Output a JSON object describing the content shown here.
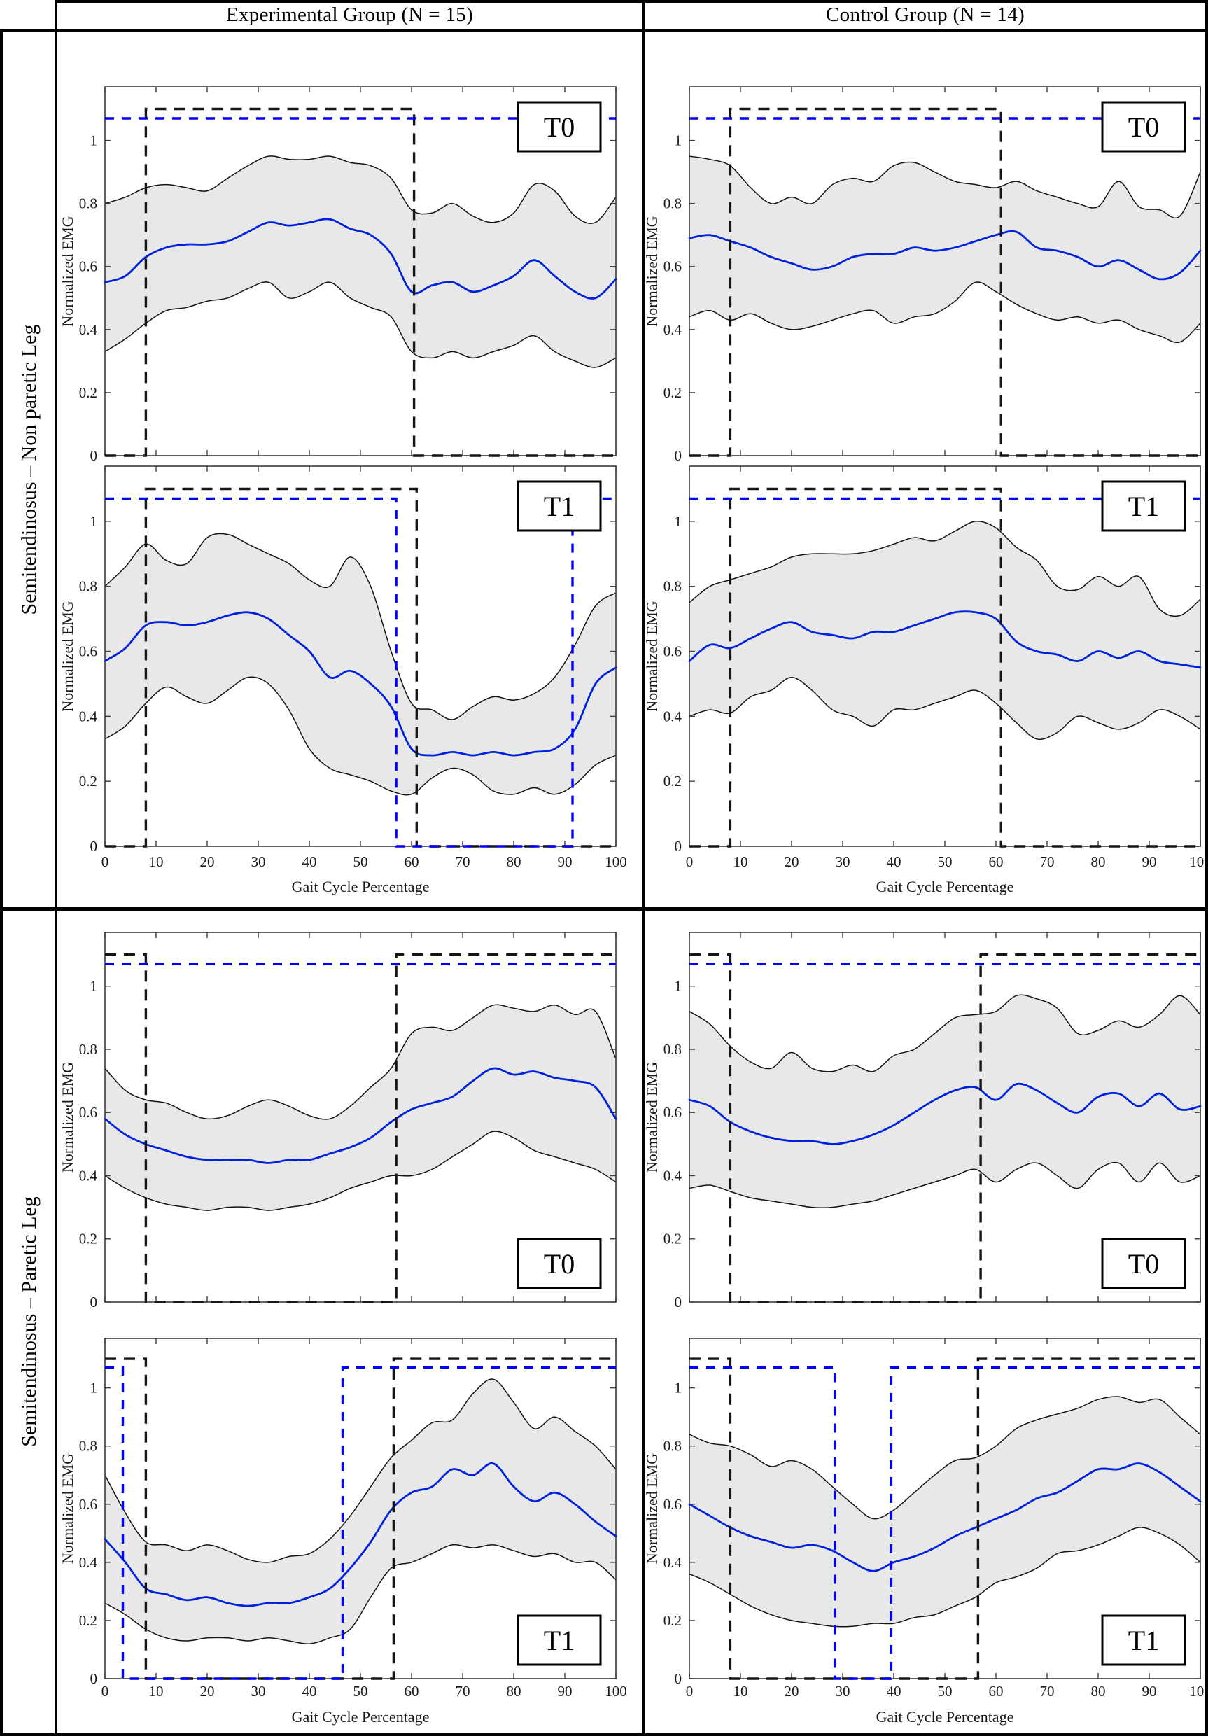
{
  "header": {
    "experimental": "Experimental Group (N = 15)",
    "control": "Control Group (N = 14)"
  },
  "rows": [
    {
      "label": "Semitendinosus – Non paretic Leg"
    },
    {
      "label": "Semitendinosus – Paretic Leg"
    }
  ],
  "axis": {
    "ylabel": "Normalized EMG",
    "xlabel": "Gait Cycle Percentage",
    "xlim": [
      0,
      100
    ],
    "ylim": [
      0,
      1.17
    ],
    "xticks": [
      0,
      10,
      20,
      30,
      40,
      50,
      60,
      70,
      80,
      90,
      100
    ],
    "yticks": [
      0,
      0.2,
      0.4,
      0.6,
      0.8,
      1
    ],
    "ytick_labels": [
      "0",
      "0.2",
      "0.4",
      "0.6",
      "0.8",
      "1"
    ],
    "grid": false
  },
  "colors": {
    "mean_line": "#0022dd",
    "blue_dashed": "#0000ff",
    "black_dashed": "#151515",
    "band_fill": "#e8e8e8",
    "band_edge": "#131313",
    "axis_line": "#3c3c3c"
  },
  "levels": {
    "black_on": 1.1,
    "blue_on": 1.07,
    "off": 0
  },
  "legend": {
    "shaded_band": "mean ± SD envelope",
    "blue_solid": "mean normalized EMG",
    "dashed_rectangles": "on/off activation intervals"
  },
  "chart_data": [
    {
      "id": "exp-np-t0",
      "type": "line",
      "group": "Experimental Group (N = 15)",
      "leg": "Non paretic Leg",
      "time_label": "T0",
      "label_position": "top-right",
      "show_x_labels": false,
      "x": [
        0,
        4,
        8,
        12,
        16,
        20,
        24,
        28,
        32,
        36,
        40,
        44,
        48,
        52,
        56,
        60,
        64,
        68,
        72,
        76,
        80,
        84,
        88,
        92,
        96,
        100
      ],
      "mean": [
        0.55,
        0.57,
        0.63,
        0.66,
        0.67,
        0.67,
        0.68,
        0.71,
        0.74,
        0.73,
        0.74,
        0.75,
        0.72,
        0.7,
        0.64,
        0.52,
        0.54,
        0.55,
        0.52,
        0.54,
        0.57,
        0.62,
        0.57,
        0.52,
        0.5,
        0.56
      ],
      "upper": [
        0.8,
        0.82,
        0.85,
        0.86,
        0.85,
        0.84,
        0.88,
        0.92,
        0.95,
        0.94,
        0.94,
        0.95,
        0.93,
        0.92,
        0.88,
        0.78,
        0.77,
        0.8,
        0.76,
        0.74,
        0.77,
        0.86,
        0.84,
        0.76,
        0.74,
        0.82
      ],
      "lower": [
        0.33,
        0.37,
        0.42,
        0.46,
        0.47,
        0.49,
        0.5,
        0.53,
        0.55,
        0.5,
        0.52,
        0.55,
        0.5,
        0.47,
        0.44,
        0.33,
        0.31,
        0.33,
        0.31,
        0.33,
        0.35,
        0.38,
        0.33,
        0.3,
        0.28,
        0.31
      ],
      "black_on_intervals": [
        [
          8,
          60.5
        ]
      ],
      "blue_on_intervals": [
        [
          0,
          100
        ]
      ]
    },
    {
      "id": "exp-np-t1",
      "type": "line",
      "group": "Experimental Group (N = 15)",
      "leg": "Non paretic Leg",
      "time_label": "T1",
      "label_position": "top-right",
      "show_x_labels": true,
      "x": [
        0,
        4,
        8,
        12,
        16,
        20,
        24,
        28,
        32,
        36,
        40,
        44,
        48,
        52,
        56,
        60,
        64,
        68,
        72,
        76,
        80,
        84,
        88,
        92,
        96,
        100
      ],
      "mean": [
        0.57,
        0.61,
        0.68,
        0.69,
        0.68,
        0.69,
        0.71,
        0.72,
        0.7,
        0.65,
        0.6,
        0.52,
        0.54,
        0.5,
        0.43,
        0.3,
        0.28,
        0.29,
        0.28,
        0.29,
        0.28,
        0.29,
        0.3,
        0.36,
        0.5,
        0.55
      ],
      "upper": [
        0.8,
        0.86,
        0.93,
        0.88,
        0.87,
        0.95,
        0.96,
        0.93,
        0.9,
        0.87,
        0.82,
        0.8,
        0.89,
        0.8,
        0.6,
        0.44,
        0.42,
        0.39,
        0.43,
        0.46,
        0.45,
        0.47,
        0.52,
        0.62,
        0.74,
        0.78
      ],
      "lower": [
        0.33,
        0.37,
        0.44,
        0.49,
        0.46,
        0.44,
        0.48,
        0.52,
        0.5,
        0.42,
        0.3,
        0.24,
        0.22,
        0.2,
        0.17,
        0.16,
        0.21,
        0.24,
        0.22,
        0.17,
        0.16,
        0.18,
        0.16,
        0.19,
        0.25,
        0.28
      ],
      "black_on_intervals": [
        [
          8,
          61
        ]
      ],
      "blue_on_intervals": [
        [
          0,
          57
        ],
        [
          91.5,
          100
        ]
      ]
    },
    {
      "id": "ctl-np-t0",
      "type": "line",
      "group": "Control Group (N = 14)",
      "leg": "Non paretic Leg",
      "time_label": "T0",
      "label_position": "top-right",
      "show_x_labels": false,
      "x": [
        0,
        4,
        8,
        12,
        16,
        20,
        24,
        28,
        32,
        36,
        40,
        44,
        48,
        52,
        56,
        60,
        64,
        68,
        72,
        76,
        80,
        84,
        88,
        92,
        96,
        100
      ],
      "mean": [
        0.69,
        0.7,
        0.68,
        0.66,
        0.63,
        0.61,
        0.59,
        0.6,
        0.63,
        0.64,
        0.64,
        0.66,
        0.65,
        0.66,
        0.68,
        0.7,
        0.71,
        0.66,
        0.65,
        0.63,
        0.6,
        0.62,
        0.59,
        0.56,
        0.58,
        0.65
      ],
      "upper": [
        0.95,
        0.94,
        0.92,
        0.85,
        0.8,
        0.82,
        0.8,
        0.86,
        0.88,
        0.87,
        0.92,
        0.93,
        0.9,
        0.87,
        0.86,
        0.85,
        0.87,
        0.84,
        0.82,
        0.8,
        0.79,
        0.87,
        0.79,
        0.78,
        0.76,
        0.9
      ],
      "lower": [
        0.44,
        0.46,
        0.43,
        0.45,
        0.42,
        0.4,
        0.41,
        0.43,
        0.45,
        0.46,
        0.42,
        0.44,
        0.45,
        0.49,
        0.55,
        0.52,
        0.48,
        0.45,
        0.43,
        0.44,
        0.42,
        0.43,
        0.4,
        0.38,
        0.36,
        0.42
      ],
      "black_on_intervals": [
        [
          8,
          61
        ]
      ],
      "blue_on_intervals": [
        [
          0,
          100
        ]
      ]
    },
    {
      "id": "ctl-np-t1",
      "type": "line",
      "group": "Control Group (N = 14)",
      "leg": "Non paretic Leg",
      "time_label": "T1",
      "label_position": "top-right",
      "show_x_labels": true,
      "x": [
        0,
        4,
        8,
        12,
        16,
        20,
        24,
        28,
        32,
        36,
        40,
        44,
        48,
        52,
        56,
        60,
        64,
        68,
        72,
        76,
        80,
        84,
        88,
        92,
        96,
        100
      ],
      "mean": [
        0.57,
        0.62,
        0.61,
        0.64,
        0.67,
        0.69,
        0.66,
        0.65,
        0.64,
        0.66,
        0.66,
        0.68,
        0.7,
        0.72,
        0.72,
        0.7,
        0.63,
        0.6,
        0.59,
        0.57,
        0.6,
        0.58,
        0.6,
        0.57,
        0.56,
        0.55
      ],
      "upper": [
        0.75,
        0.8,
        0.82,
        0.84,
        0.86,
        0.89,
        0.9,
        0.9,
        0.9,
        0.91,
        0.93,
        0.95,
        0.94,
        0.97,
        1.0,
        0.98,
        0.92,
        0.88,
        0.8,
        0.79,
        0.83,
        0.8,
        0.83,
        0.73,
        0.71,
        0.76
      ],
      "lower": [
        0.4,
        0.42,
        0.41,
        0.46,
        0.48,
        0.52,
        0.48,
        0.42,
        0.4,
        0.37,
        0.42,
        0.42,
        0.44,
        0.46,
        0.48,
        0.44,
        0.38,
        0.33,
        0.35,
        0.4,
        0.38,
        0.36,
        0.38,
        0.42,
        0.4,
        0.36
      ],
      "black_on_intervals": [
        [
          8,
          61
        ]
      ],
      "blue_on_intervals": [
        [
          0,
          100
        ]
      ]
    },
    {
      "id": "exp-p-t0",
      "type": "line",
      "group": "Experimental Group (N = 15)",
      "leg": "Paretic Leg",
      "time_label": "T0",
      "label_position": "bottom-right",
      "show_x_labels": false,
      "x": [
        0,
        4,
        8,
        12,
        16,
        20,
        24,
        28,
        32,
        36,
        40,
        44,
        48,
        52,
        56,
        60,
        64,
        68,
        72,
        76,
        80,
        84,
        88,
        92,
        96,
        100
      ],
      "mean": [
        0.58,
        0.53,
        0.5,
        0.48,
        0.46,
        0.45,
        0.45,
        0.45,
        0.44,
        0.45,
        0.45,
        0.47,
        0.49,
        0.52,
        0.57,
        0.61,
        0.63,
        0.65,
        0.7,
        0.74,
        0.72,
        0.73,
        0.71,
        0.7,
        0.68,
        0.58
      ],
      "upper": [
        0.74,
        0.67,
        0.64,
        0.63,
        0.6,
        0.58,
        0.59,
        0.62,
        0.64,
        0.62,
        0.59,
        0.58,
        0.62,
        0.68,
        0.74,
        0.85,
        0.87,
        0.86,
        0.9,
        0.94,
        0.93,
        0.92,
        0.94,
        0.91,
        0.92,
        0.77
      ],
      "lower": [
        0.4,
        0.36,
        0.33,
        0.31,
        0.3,
        0.29,
        0.3,
        0.3,
        0.29,
        0.3,
        0.31,
        0.33,
        0.36,
        0.38,
        0.4,
        0.4,
        0.42,
        0.46,
        0.5,
        0.54,
        0.52,
        0.48,
        0.46,
        0.44,
        0.42,
        0.38
      ],
      "black_on_intervals": [
        [
          0,
          8
        ],
        [
          57,
          100
        ]
      ],
      "blue_on_intervals": [
        [
          0,
          100
        ]
      ]
    },
    {
      "id": "exp-p-t1",
      "type": "line",
      "group": "Experimental Group (N = 15)",
      "leg": "Paretic Leg",
      "time_label": "T1",
      "label_position": "bottom-right",
      "show_x_labels": true,
      "x": [
        0,
        4,
        8,
        12,
        16,
        20,
        24,
        28,
        32,
        36,
        40,
        44,
        48,
        52,
        56,
        60,
        64,
        68,
        72,
        76,
        80,
        84,
        88,
        92,
        96,
        100
      ],
      "mean": [
        0.48,
        0.4,
        0.31,
        0.29,
        0.27,
        0.28,
        0.26,
        0.25,
        0.26,
        0.26,
        0.28,
        0.31,
        0.38,
        0.47,
        0.58,
        0.64,
        0.66,
        0.72,
        0.7,
        0.74,
        0.66,
        0.61,
        0.64,
        0.6,
        0.54,
        0.49
      ],
      "upper": [
        0.7,
        0.57,
        0.47,
        0.46,
        0.44,
        0.46,
        0.44,
        0.41,
        0.4,
        0.42,
        0.43,
        0.48,
        0.56,
        0.66,
        0.76,
        0.82,
        0.88,
        0.89,
        0.98,
        1.03,
        0.95,
        0.86,
        0.9,
        0.85,
        0.8,
        0.72
      ],
      "lower": [
        0.26,
        0.22,
        0.17,
        0.14,
        0.13,
        0.14,
        0.14,
        0.13,
        0.14,
        0.13,
        0.12,
        0.14,
        0.17,
        0.28,
        0.38,
        0.4,
        0.43,
        0.46,
        0.45,
        0.46,
        0.44,
        0.42,
        0.43,
        0.4,
        0.4,
        0.34
      ],
      "black_on_intervals": [
        [
          0,
          8
        ],
        [
          56.5,
          100
        ]
      ],
      "blue_on_intervals": [
        [
          0,
          3.5
        ],
        [
          46.5,
          100
        ]
      ]
    },
    {
      "id": "ctl-p-t0",
      "type": "line",
      "group": "Control Group (N = 14)",
      "leg": "Paretic Leg",
      "time_label": "T0",
      "label_position": "bottom-right",
      "show_x_labels": false,
      "x": [
        0,
        4,
        8,
        12,
        16,
        20,
        24,
        28,
        32,
        36,
        40,
        44,
        48,
        52,
        56,
        60,
        64,
        68,
        72,
        76,
        80,
        84,
        88,
        92,
        96,
        100
      ],
      "mean": [
        0.64,
        0.62,
        0.57,
        0.54,
        0.52,
        0.51,
        0.51,
        0.5,
        0.51,
        0.53,
        0.56,
        0.6,
        0.64,
        0.67,
        0.68,
        0.64,
        0.69,
        0.67,
        0.63,
        0.6,
        0.65,
        0.66,
        0.62,
        0.66,
        0.61,
        0.62
      ],
      "upper": [
        0.92,
        0.88,
        0.81,
        0.76,
        0.74,
        0.79,
        0.74,
        0.73,
        0.75,
        0.73,
        0.78,
        0.8,
        0.85,
        0.9,
        0.91,
        0.92,
        0.97,
        0.96,
        0.93,
        0.85,
        0.86,
        0.89,
        0.87,
        0.91,
        0.97,
        0.91
      ],
      "lower": [
        0.36,
        0.37,
        0.35,
        0.33,
        0.32,
        0.31,
        0.3,
        0.3,
        0.31,
        0.32,
        0.34,
        0.36,
        0.38,
        0.4,
        0.42,
        0.38,
        0.42,
        0.44,
        0.4,
        0.36,
        0.42,
        0.44,
        0.38,
        0.44,
        0.38,
        0.4
      ],
      "black_on_intervals": [
        [
          0,
          8
        ],
        [
          57,
          100
        ]
      ],
      "blue_on_intervals": [
        [
          0,
          100
        ]
      ]
    },
    {
      "id": "ctl-p-t1",
      "type": "line",
      "group": "Control Group (N = 14)",
      "leg": "Paretic Leg",
      "time_label": "T1",
      "label_position": "bottom-right",
      "show_x_labels": true,
      "x": [
        0,
        4,
        8,
        12,
        16,
        20,
        24,
        28,
        32,
        36,
        40,
        44,
        48,
        52,
        56,
        60,
        64,
        68,
        72,
        76,
        80,
        84,
        88,
        92,
        96,
        100
      ],
      "mean": [
        0.6,
        0.56,
        0.52,
        0.49,
        0.47,
        0.45,
        0.46,
        0.44,
        0.4,
        0.37,
        0.4,
        0.42,
        0.45,
        0.49,
        0.52,
        0.55,
        0.58,
        0.62,
        0.64,
        0.68,
        0.72,
        0.72,
        0.74,
        0.71,
        0.66,
        0.61
      ],
      "upper": [
        0.84,
        0.81,
        0.8,
        0.77,
        0.73,
        0.75,
        0.72,
        0.66,
        0.6,
        0.55,
        0.58,
        0.64,
        0.7,
        0.75,
        0.76,
        0.8,
        0.86,
        0.89,
        0.91,
        0.93,
        0.96,
        0.97,
        0.95,
        0.96,
        0.9,
        0.84
      ],
      "lower": [
        0.36,
        0.33,
        0.29,
        0.25,
        0.22,
        0.2,
        0.19,
        0.18,
        0.18,
        0.19,
        0.19,
        0.21,
        0.22,
        0.25,
        0.28,
        0.33,
        0.35,
        0.38,
        0.43,
        0.44,
        0.46,
        0.49,
        0.52,
        0.5,
        0.46,
        0.4
      ],
      "black_on_intervals": [
        [
          0,
          8
        ],
        [
          56.5,
          100
        ]
      ],
      "blue_on_intervals": [
        [
          0,
          28.5
        ],
        [
          39.5,
          100
        ]
      ]
    }
  ]
}
